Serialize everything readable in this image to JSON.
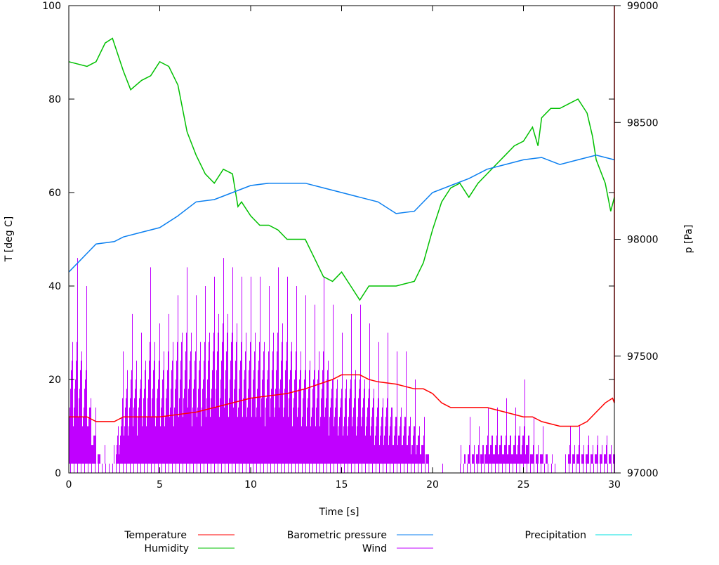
{
  "chart_data": {
    "type": "line",
    "xlabel": "Time [s]",
    "ylabel": "T [deg C]",
    "y2label": "p [Pa]",
    "xlim": [
      0,
      30
    ],
    "ylim": [
      0,
      100
    ],
    "y2lim": [
      97000,
      99000
    ],
    "xticks": [
      "0",
      "5",
      "10",
      "15",
      "20",
      "25",
      "30"
    ],
    "yticks": [
      "0",
      "20",
      "40",
      "60",
      "80",
      "100"
    ],
    "y2ticks": [
      "97000",
      "97500",
      "98000",
      "98500",
      "99000"
    ],
    "grid": false,
    "legend_position": "bottom",
    "series": [
      {
        "name": "Temperature",
        "axis": "left",
        "color": "#ff0000",
        "x": [
          0,
          1,
          1.5,
          2.5,
          3,
          5,
          7,
          8,
          10,
          12,
          13,
          14.5,
          15,
          16,
          16.5,
          17,
          18,
          19,
          19.5,
          20,
          20.5,
          21,
          22,
          23,
          24,
          25,
          25.5,
          26,
          27,
          28,
          28.5,
          29,
          29.5,
          29.9,
          30,
          30
        ],
        "y": [
          12,
          12,
          11,
          11,
          12,
          12,
          13,
          14,
          16,
          17,
          18,
          20,
          21,
          21,
          20,
          19.5,
          19,
          18,
          18,
          17,
          15,
          14,
          14,
          14,
          13,
          12,
          12,
          11,
          10,
          10,
          11,
          13,
          15,
          16,
          15,
          100
        ]
      },
      {
        "name": "Humidity",
        "axis": "left",
        "color": "#00c000",
        "x": [
          0,
          1,
          1.5,
          2,
          2.4,
          3,
          3.4,
          4,
          4.5,
          5,
          5.5,
          6,
          6.3,
          6.5,
          7,
          7.5,
          8,
          8.5,
          9,
          9.3,
          9.5,
          10,
          10.5,
          11,
          11.5,
          12,
          12.5,
          13,
          13.5,
          14,
          14.5,
          15,
          15.5,
          16,
          16.5,
          17,
          18,
          19,
          19.5,
          20,
          20.5,
          21,
          21.5,
          22,
          22.5,
          23,
          23.5,
          24,
          24.5,
          25,
          25.5,
          25.8,
          26,
          26.5,
          27,
          27.5,
          28,
          28.5,
          28.8,
          29,
          29.5,
          29.8,
          30
        ],
        "y": [
          88,
          87,
          88,
          92,
          93,
          86,
          82,
          84,
          85,
          88,
          87,
          83,
          77,
          73,
          68,
          64,
          62,
          65,
          64,
          57,
          58,
          55,
          53,
          53,
          52,
          50,
          50,
          50,
          46,
          42,
          41,
          43,
          40,
          37,
          40,
          40,
          40,
          41,
          45,
          52,
          58,
          61,
          62,
          59,
          62,
          64,
          66,
          68,
          70,
          71,
          74,
          70,
          76,
          78,
          78,
          79,
          80,
          77,
          72,
          67,
          62,
          56,
          59
        ]
      },
      {
        "name": "Barometric pressure",
        "axis": "right",
        "color": "#0a7ff0",
        "x": [
          0,
          0.5,
          1,
          1.5,
          2.5,
          3,
          4,
          5,
          6,
          7,
          8,
          9,
          10,
          11,
          12,
          13,
          14,
          15,
          16,
          17,
          18,
          19,
          20,
          21,
          22,
          23,
          24,
          25,
          26,
          27,
          28,
          29,
          30
        ],
        "y": [
          97860,
          97900,
          97940,
          97980,
          97990,
          98010,
          98030,
          98050,
          98100,
          98160,
          98170,
          98200,
          98230,
          98240,
          98240,
          98240,
          98220,
          98200,
          98180,
          98160,
          98110,
          98120,
          98200,
          98230,
          98260,
          98300,
          98320,
          98340,
          98350,
          98320,
          98340,
          98360,
          98340
        ]
      },
      {
        "name": "Wind",
        "axis": "left",
        "color": "#c000ff",
        "x": [
          0,
          0.5,
          1,
          1.5,
          2,
          2.5,
          3,
          3.5,
          4,
          4.5,
          5,
          5.5,
          6,
          6.5,
          7,
          7.5,
          8,
          8.5,
          9,
          9.5,
          10,
          10.5,
          11,
          11.5,
          12,
          12.5,
          13,
          13.5,
          14,
          14.5,
          15,
          15.5,
          16,
          16.5,
          17,
          17.5,
          18,
          18.5,
          19,
          19.5,
          20,
          20.5,
          21,
          21.5,
          22,
          22.5,
          23,
          23.5,
          24,
          24.5,
          25,
          25.5,
          26,
          26.5,
          27,
          27.5,
          28,
          28.5,
          29,
          29.5,
          30
        ],
        "y_peak": [
          30,
          48,
          40,
          12,
          6,
          6,
          28,
          36,
          30,
          46,
          32,
          35,
          40,
          45,
          38,
          40,
          44,
          48,
          45,
          42,
          44,
          42,
          40,
          46,
          44,
          40,
          38,
          36,
          44,
          38,
          30,
          34,
          36,
          34,
          28,
          30,
          26,
          28,
          22,
          14,
          2,
          2,
          2,
          6,
          12,
          10,
          14,
          14,
          16,
          14,
          22,
          12,
          10,
          4,
          2,
          10,
          10,
          8,
          8,
          8,
          8
        ],
        "y_typical": [
          20,
          22,
          16,
          4,
          2,
          2,
          14,
          18,
          16,
          22,
          18,
          20,
          22,
          24,
          20,
          22,
          24,
          26,
          24,
          22,
          22,
          22,
          20,
          24,
          22,
          20,
          18,
          18,
          20,
          16,
          14,
          16,
          16,
          14,
          12,
          12,
          10,
          10,
          8,
          6,
          0,
          0,
          0,
          2,
          4,
          4,
          6,
          6,
          6,
          6,
          8,
          4,
          4,
          2,
          0,
          4,
          4,
          4,
          4,
          4,
          4
        ]
      },
      {
        "name": "Precipitation",
        "axis": "right",
        "color": "#00e0e0",
        "x": [],
        "y": []
      }
    ]
  }
}
